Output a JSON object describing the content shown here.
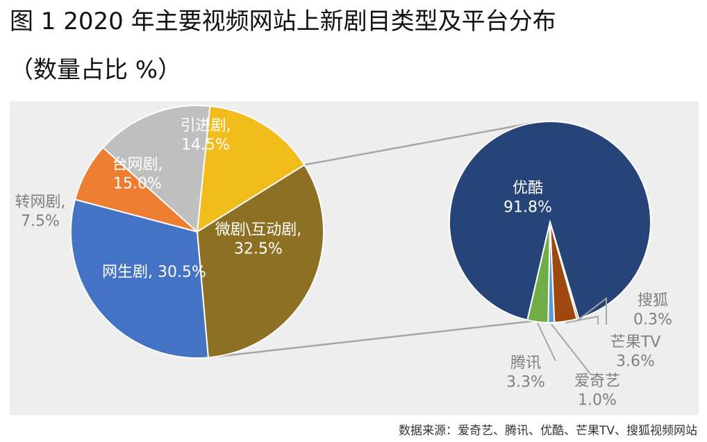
{
  "title_line1": "图 1 2020 年主要视频网站上新剧目类型及平台分布",
  "title_line2": "（数量占比 %）",
  "source": "数据来源：爱奇艺、腾讯、优酷、芒果TV、搜狐视频网站",
  "chart_data": [
    {
      "type": "pie",
      "categories": [
        "微剧\\互动剧",
        "网生剧",
        "转网剧",
        "台网剧",
        "引进剧"
      ],
      "values": [
        32.5,
        30.5,
        7.5,
        15.0,
        14.5
      ],
      "labels": [
        {
          "name": "微剧\\互动剧,",
          "value": "32.5%"
        },
        {
          "name": "网生剧, 30.5%",
          "value": ""
        },
        {
          "name": "转网剧,",
          "value": "7.5%"
        },
        {
          "name": "台网剧,",
          "value": "15.0%"
        },
        {
          "name": "引进剧,",
          "value": "14.5%"
        }
      ],
      "colors": [
        "#8E7025",
        "#4472C4",
        "#ED7D31",
        "#BFBFBF",
        "#F2BC1B"
      ]
    },
    {
      "type": "pie",
      "categories": [
        "优酷",
        "搜狐",
        "芒果TV",
        "爱奇艺",
        "腾讯"
      ],
      "values": [
        91.8,
        0.3,
        3.6,
        1.0,
        3.3
      ],
      "labels": [
        {
          "name": "优酷",
          "value": "91.8%"
        },
        {
          "name": "搜狐",
          "value": "0.3%"
        },
        {
          "name": "芒果TV",
          "value": "3.6%"
        },
        {
          "name": "爱奇艺",
          "value": "1.0%"
        },
        {
          "name": "腾讯",
          "value": "3.3%"
        }
      ],
      "colors": [
        "#264478",
        "#C55A11",
        "#9E480E",
        "#5B9BD5",
        "#70AD47"
      ]
    }
  ]
}
